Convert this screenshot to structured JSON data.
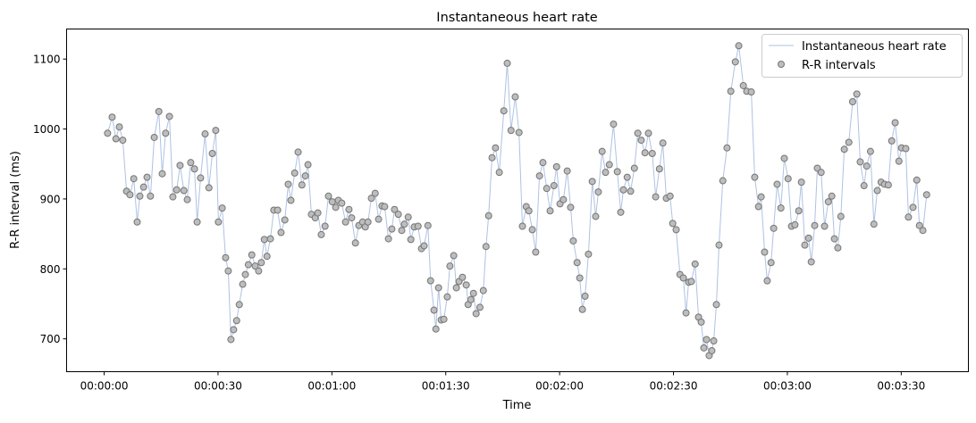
{
  "chart_data": {
    "type": "line",
    "title": "Instantaneous heart rate",
    "xlabel": "Time",
    "ylabel": "R-R interval (ms)",
    "xlim": [
      -9.9,
      227.7
    ],
    "ylim": [
      653,
      1143
    ],
    "grid": false,
    "legend_position": "top-right",
    "x_ticks": [
      {
        "value": 0,
        "label": "00:00:00"
      },
      {
        "value": 30,
        "label": "00:00:30"
      },
      {
        "value": 60,
        "label": "00:01:00"
      },
      {
        "value": 90,
        "label": "00:01:30"
      },
      {
        "value": 120,
        "label": "00:02:00"
      },
      {
        "value": 150,
        "label": "00:02:30"
      },
      {
        "value": 180,
        "label": "00:03:00"
      },
      {
        "value": 210,
        "label": "00:03:30"
      }
    ],
    "y_ticks": [
      {
        "value": 700,
        "label": "700"
      },
      {
        "value": 800,
        "label": "800"
      },
      {
        "value": 900,
        "label": "900"
      },
      {
        "value": 1000,
        "label": "1000"
      },
      {
        "value": 1100,
        "label": "1100"
      }
    ],
    "series": [
      {
        "name": "Instantaneous heart rate",
        "kind": "line",
        "color": "#aec2e3"
      },
      {
        "name": "R-R intervals",
        "kind": "scatter",
        "color": "#bdbdbd",
        "edge_color": "#757575"
      }
    ],
    "x": [
      0.9,
      2.1,
      3.1,
      4.0,
      4.9,
      5.9,
      6.8,
      7.8,
      8.7,
      9.4,
      10.4,
      11.3,
      12.2,
      13.2,
      14.4,
      15.3,
      16.2,
      17.2,
      18.1,
      19.1,
      20.0,
      21.0,
      21.9,
      22.8,
      23.8,
      24.5,
      25.4,
      26.6,
      27.6,
      28.5,
      29.4,
      30.1,
      31.1,
      32.0,
      32.7,
      33.4,
      34.1,
      34.9,
      35.6,
      36.5,
      37.2,
      38.0,
      38.9,
      39.8,
      40.7,
      41.4,
      42.2,
      42.9,
      43.8,
      44.7,
      45.7,
      46.6,
      47.6,
      48.5,
      49.2,
      50.2,
      51.1,
      52.1,
      53.0,
      53.7,
      54.6,
      55.6,
      56.3,
      57.2,
      58.2,
      59.1,
      60.1,
      61.0,
      61.7,
      62.6,
      63.6,
      64.5,
      65.2,
      66.2,
      67.1,
      68.1,
      68.8,
      69.5,
      70.4,
      71.4,
      72.3,
      73.2,
      73.9,
      74.9,
      75.8,
      76.5,
      77.5,
      78.4,
      79.1,
      80.1,
      80.8,
      81.7,
      82.7,
      83.6,
      84.3,
      85.3,
      86.0,
      86.9,
      87.4,
      88.1,
      88.8,
      89.5,
      90.4,
      91.1,
      92.1,
      92.8,
      93.5,
      94.4,
      95.4,
      95.9,
      96.6,
      97.3,
      98.0,
      99.0,
      99.9,
      100.6,
      101.3,
      102.2,
      103.1,
      104.1,
      105.3,
      106.2,
      107.2,
      108.3,
      109.3,
      110.2,
      111.2,
      111.9,
      112.8,
      113.7,
      114.7,
      115.6,
      116.6,
      117.5,
      118.5,
      119.2,
      120.1,
      121.0,
      122.0,
      122.9,
      123.6,
      124.6,
      125.3,
      126.0,
      126.7,
      127.6,
      128.6,
      129.5,
      130.2,
      131.2,
      132.1,
      133.1,
      134.2,
      135.2,
      136.1,
      136.8,
      137.8,
      138.7,
      139.7,
      140.6,
      141.5,
      142.5,
      143.4,
      144.4,
      145.3,
      146.3,
      147.2,
      148.1,
      149.1,
      149.8,
      150.7,
      151.7,
      152.6,
      153.3,
      154.0,
      154.7,
      155.7,
      156.6,
      157.3,
      158.0,
      158.7,
      159.4,
      160.1,
      160.6,
      161.3,
      162.0,
      163.0,
      164.1,
      165.1,
      166.3,
      167.2,
      168.4,
      169.3,
      170.5,
      171.4,
      172.4,
      173.1,
      174.0,
      174.7,
      175.7,
      176.4,
      177.3,
      178.3,
      179.2,
      180.2,
      181.1,
      182.0,
      183.0,
      183.7,
      184.6,
      185.6,
      186.3,
      187.2,
      187.9,
      188.9,
      189.8,
      190.8,
      191.7,
      192.4,
      193.3,
      194.1,
      195.0,
      196.2,
      197.2,
      198.3,
      199.2,
      200.2,
      200.9,
      201.9,
      202.8,
      203.7,
      204.7,
      205.6,
      206.6,
      207.5,
      208.4,
      209.4,
      210.1,
      211.2,
      211.9,
      213.1,
      214.1,
      214.8,
      215.7,
      216.7
    ],
    "y": [
      994,
      1017,
      986,
      1003,
      984,
      911,
      906,
      929,
      867,
      904,
      917,
      931,
      904,
      988,
      1025,
      936,
      994,
      1018,
      903,
      913,
      948,
      912,
      899,
      952,
      943,
      867,
      930,
      993,
      916,
      965,
      998,
      867,
      887,
      816,
      797,
      699,
      713,
      726,
      749,
      778,
      792,
      806,
      820,
      804,
      797,
      809,
      842,
      818,
      843,
      884,
      884,
      852,
      870,
      921,
      898,
      937,
      967,
      920,
      933,
      949,
      878,
      873,
      880,
      849,
      861,
      904,
      896,
      888,
      898,
      894,
      867,
      885,
      873,
      837,
      862,
      867,
      860,
      867,
      901,
      908,
      871,
      890,
      889,
      843,
      857,
      885,
      878,
      855,
      864,
      874,
      842,
      860,
      861,
      829,
      833,
      862,
      783,
      741,
      714,
      773,
      727,
      728,
      760,
      804,
      819,
      773,
      782,
      788,
      777,
      749,
      756,
      765,
      736,
      745,
      769,
      832,
      876,
      959,
      973,
      938,
      1026,
      1094,
      998,
      1046,
      995,
      861,
      889,
      883,
      856,
      824,
      933,
      952,
      915,
      883,
      919,
      946,
      893,
      899,
      940,
      888,
      840,
      809,
      787,
      742,
      761,
      821,
      925,
      875,
      910,
      968,
      938,
      949,
      1007,
      939,
      881,
      913,
      931,
      911,
      944,
      994,
      984,
      966,
      994,
      965,
      903,
      943,
      980,
      901,
      904,
      865,
      856,
      792,
      787,
      737,
      781,
      782,
      807,
      731,
      724,
      687,
      699,
      676,
      683,
      697,
      749,
      834,
      926,
      973,
      1054,
      1096,
      1119,
      1062,
      1054,
      1053,
      931,
      889,
      903,
      824,
      783,
      809,
      858,
      921,
      887,
      958,
      929,
      861,
      863,
      883,
      924,
      834,
      844,
      810,
      862,
      944,
      938,
      861,
      896,
      904,
      843,
      830,
      875,
      971,
      981,
      1039,
      1050,
      953,
      919,
      947,
      968,
      864,
      912,
      924,
      921,
      920,
      983,
      1009,
      954,
      973,
      972,
      874,
      888,
      927,
      862,
      855,
      906
    ]
  }
}
